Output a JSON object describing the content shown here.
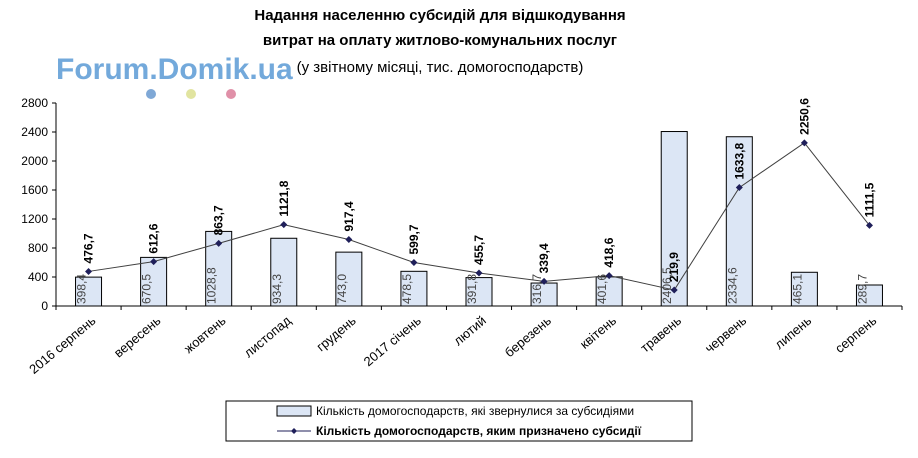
{
  "chart_data": {
    "type": "bar",
    "title_lines": [
      "Надання населенню субсидій  для відшкодування",
      "витрат на оплату житлово-комунальних послуг"
    ],
    "subtitle": "(у звітному місяці, тис. домогосподарств)",
    "watermark": "Forum.Domik.ua",
    "categories": [
      "2016 серпень",
      "вересень",
      "жовтень",
      "листопад",
      "грудень",
      "2017 січень",
      "лютий",
      "березень",
      "квітень",
      "травень",
      "червень",
      "липень",
      "серпень"
    ],
    "ylim": [
      0,
      2800
    ],
    "yticks": [
      0,
      400,
      800,
      1200,
      1600,
      2000,
      2400,
      2800
    ],
    "grid": false,
    "legend_position": "bottom",
    "series": [
      {
        "name": "Кількість домогосподарств, які звернулися за субсидіями",
        "kind": "bar",
        "color": "#dce6f5",
        "values": [
          398.4,
          670.5,
          1028.8,
          934.3,
          743.0,
          478.5,
          391.8,
          316.7,
          401.6,
          2406.5,
          2334.6,
          465.1,
          289.7
        ],
        "labels": [
          "398,4",
          "670,5",
          "1028,8",
          "934,3",
          "743,0",
          "478,5",
          "391,8",
          "316,7",
          "401,6",
          "2406,5",
          "2334,6",
          "465,1",
          "289,7"
        ]
      },
      {
        "name": "Кількість домогосподарств, яким  призначено субсидії",
        "kind": "line",
        "color": "#1f1f5a",
        "values": [
          476.7,
          612.6,
          863.7,
          1121.8,
          917.4,
          599.7,
          455.7,
          339.4,
          418.6,
          219.9,
          1633.8,
          2250.6,
          1111.5
        ],
        "labels": [
          "476,7",
          "612,6",
          "863,7",
          "1121,8",
          "917,4",
          "599,7",
          "455,7",
          "339,4",
          "418,6",
          "219,9",
          "1633,8",
          "2250,6",
          "1111,5"
        ]
      }
    ]
  }
}
